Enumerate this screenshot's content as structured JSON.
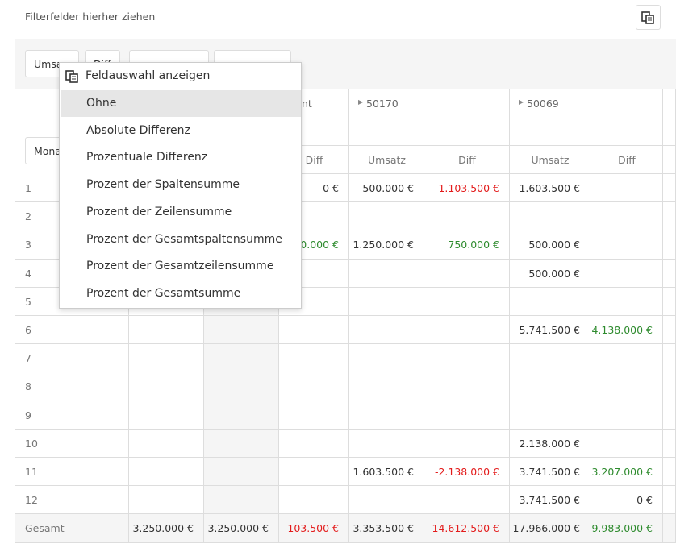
{
  "header": {
    "filter_hint": "Filterfelder hierher ziehen"
  },
  "fields": {
    "data_fields": [
      "Umsa",
      "Diff"
    ],
    "row_field": "Mona"
  },
  "columns": {
    "group_header": "nt",
    "groups": [
      "50170",
      "50069"
    ],
    "measure_labels": [
      "Diff",
      "Umsatz",
      "Diff",
      "Umsatz",
      "Diff"
    ]
  },
  "rows": [
    {
      "label": "1",
      "cells": [
        null,
        null,
        "0 €",
        "500.000 €",
        {
          "text": "-1.103.500 €",
          "color": "#e31b1b"
        },
        "1.603.500 €",
        null
      ]
    },
    {
      "label": "2",
      "cells": [
        null,
        null,
        null,
        null,
        null,
        null,
        null
      ]
    },
    {
      "label": "3",
      "cells": [
        null,
        null,
        {
          "text": "00.000 €",
          "color": "#2e8b2e"
        },
        "1.250.000 €",
        {
          "text": "750.000 €",
          "color": "#2e8b2e"
        },
        "500.000 €",
        null
      ]
    },
    {
      "label": "4",
      "cells": [
        null,
        null,
        null,
        null,
        null,
        "500.000 €",
        null
      ]
    },
    {
      "label": "5",
      "cells": [
        null,
        null,
        null,
        null,
        null,
        null,
        null
      ]
    },
    {
      "label": "6",
      "cells": [
        null,
        null,
        null,
        null,
        null,
        "5.741.500 €",
        {
          "text": "4.138.000 €",
          "color": "#2e8b2e"
        }
      ]
    },
    {
      "label": "7",
      "cells": [
        null,
        null,
        null,
        null,
        null,
        null,
        null
      ]
    },
    {
      "label": "8",
      "cells": [
        null,
        null,
        null,
        null,
        null,
        null,
        null
      ]
    },
    {
      "label": "9",
      "cells": [
        null,
        null,
        null,
        null,
        null,
        null,
        null
      ]
    },
    {
      "label": "10",
      "cells": [
        null,
        null,
        null,
        null,
        null,
        "2.138.000 €",
        null
      ]
    },
    {
      "label": "11",
      "cells": [
        null,
        null,
        null,
        "1.603.500 €",
        {
          "text": "-2.138.000 €",
          "color": "#e31b1b"
        },
        "3.741.500 €",
        {
          "text": "3.207.000 €",
          "color": "#2e8b2e"
        }
      ]
    },
    {
      "label": "12",
      "cells": [
        null,
        null,
        null,
        null,
        null,
        "3.741.500 €",
        "0 €"
      ]
    },
    {
      "label": "Gesamt",
      "cells": [
        "3.250.000 €",
        "3.250.000 €",
        {
          "text": "-103.500 €",
          "color": "#e31b1b"
        },
        "3.353.500 €",
        {
          "text": "-14.612.500 €",
          "color": "#e31b1b"
        },
        "17.966.000 €",
        {
          "text": "9.983.000 €",
          "color": "#2e8b2e"
        }
      ]
    }
  ],
  "menu": {
    "title": "Feldauswahl anzeigen",
    "items": [
      "Ohne",
      "Absolute Differenz",
      "Prozentuale Differenz",
      "Prozent der Spaltensumme",
      "Prozent der Zeilensumme",
      "Prozent der Gesamtspaltensumme",
      "Prozent der Gesamtzeilensumme",
      "Prozent der Gesamtsumme"
    ],
    "selected": 0
  }
}
